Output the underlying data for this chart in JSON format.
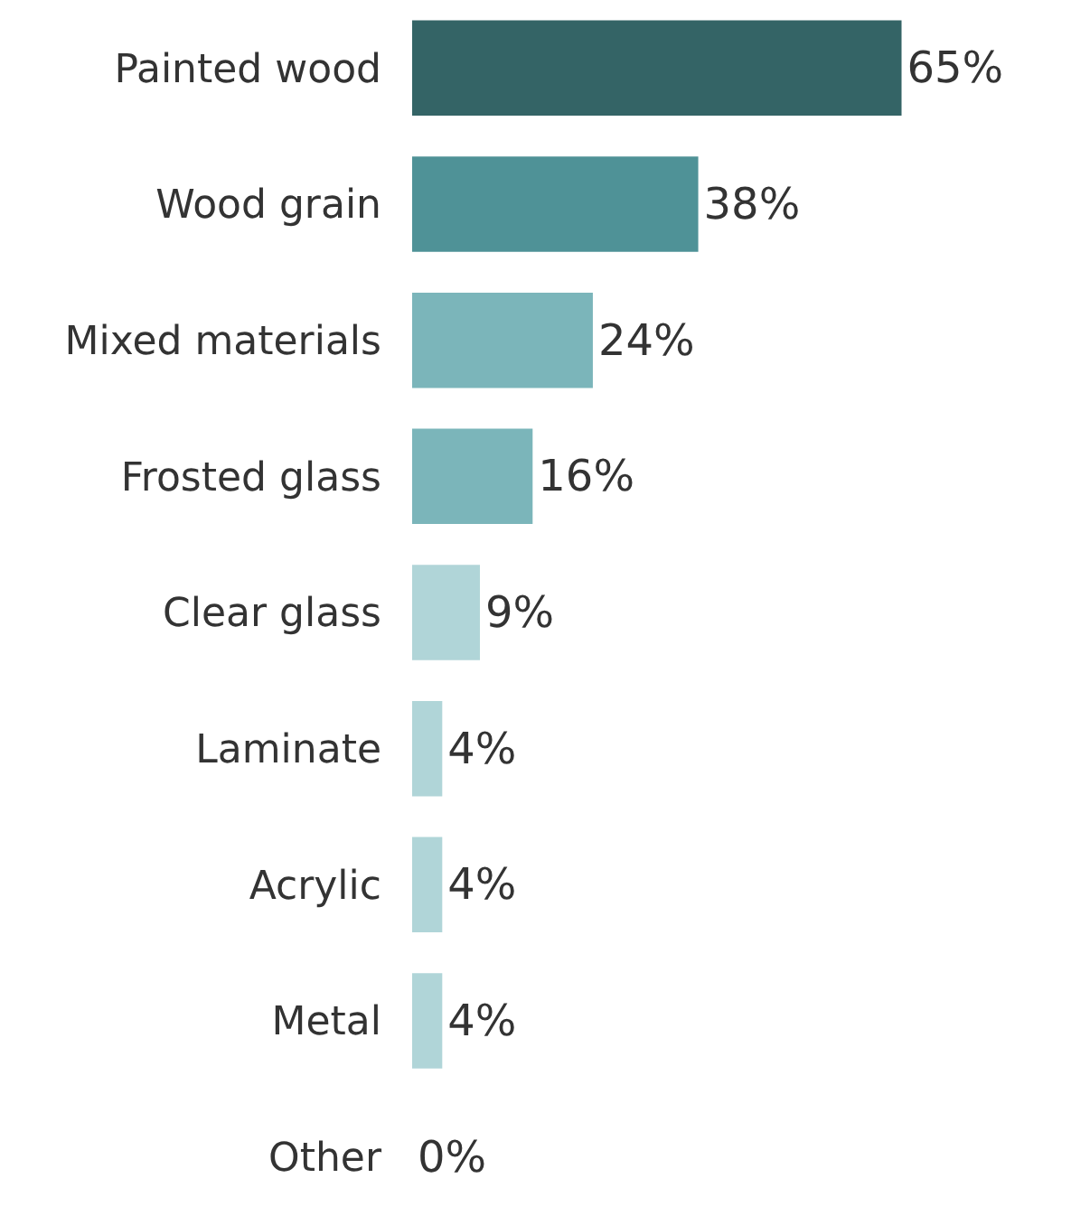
{
  "chart_data": {
    "type": "bar",
    "orientation": "horizontal",
    "categories": [
      "Painted wood",
      "Wood grain",
      "Mixed materials",
      "Frosted glass",
      "Clear glass",
      "Laminate",
      "Acrylic",
      "Metal",
      "Other"
    ],
    "values": [
      65,
      38,
      24,
      16,
      9,
      4,
      4,
      4,
      0
    ],
    "value_labels": [
      "65%",
      "38%",
      "24%",
      "16%",
      "9%",
      "4%",
      "4%",
      "4%",
      "0%"
    ],
    "colors": [
      "#346466",
      "#4f9297",
      "#7bb5ba",
      "#7bb5ba",
      "#b0d5d8",
      "#b0d5d8",
      "#b0d5d8",
      "#b0d5d8",
      "#b0d5d8"
    ]
  }
}
